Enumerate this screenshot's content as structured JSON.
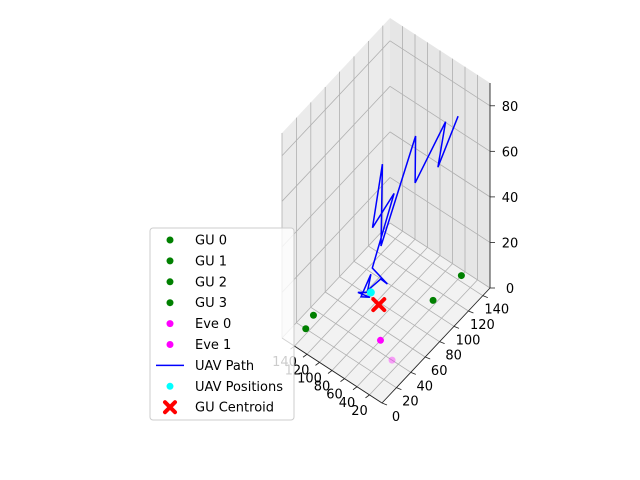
{
  "chart_data": {
    "type": "scatter3d",
    "title": "",
    "xlabel": "",
    "ylabel": "",
    "zlabel": "",
    "xlim": [
      0,
      160
    ],
    "ylim": [
      0,
      150
    ],
    "zlim": [
      0,
      90
    ],
    "x_ticks": [
      "20",
      "40",
      "60",
      "80",
      "100",
      "120",
      "140"
    ],
    "x_ticks_visible": [
      "20",
      "100",
      "120",
      "140"
    ],
    "y_ticks": [
      "0",
      "20",
      "40",
      "60",
      "80",
      "100",
      "120",
      "140"
    ],
    "z_ticks": [
      "0",
      "20",
      "40",
      "60",
      "80"
    ],
    "grid": true,
    "legend_position": "lower-left",
    "colors": {
      "gu": "#008000",
      "eve": "#ff00ff",
      "path": "#0000ff",
      "uav_positions": "#00ffff",
      "centroid": "#ff0000"
    },
    "ground_users": [
      {
        "name": "GU 0",
        "x": 150,
        "y": 35,
        "z": 0
      },
      {
        "name": "GU 1",
        "x": 145,
        "y": 20,
        "z": 0
      },
      {
        "name": "GU 2",
        "x": 45,
        "y": 110,
        "z": 0
      },
      {
        "name": "GU 3",
        "x": 40,
        "y": 145,
        "z": 0
      }
    ],
    "eavesdroppers": [
      {
        "name": "Eve 0",
        "x": 30,
        "y": 40,
        "z": 0
      },
      {
        "name": "Eve 1",
        "x": 60,
        "y": 50,
        "z": 0
      }
    ],
    "uav_path": {
      "name": "UAV Path",
      "points": [
        [
          5,
          110,
          88
        ],
        [
          20,
          95,
          68
        ],
        [
          25,
          110,
          82
        ],
        [
          45,
          85,
          60
        ],
        [
          50,
          90,
          78
        ],
        [
          88,
          75,
          28
        ],
        [
          95,
          83,
          60
        ],
        [
          105,
          78,
          32
        ],
        [
          90,
          95,
          44
        ],
        [
          125,
          95,
          5
        ],
        [
          95,
          90,
          5
        ],
        [
          100,
          85,
          8
        ],
        [
          115,
          80,
          2
        ],
        [
          110,
          80,
          10
        ],
        [
          120,
          75,
          0
        ],
        [
          100,
          70,
          5
        ],
        [
          125,
          75,
          1
        ],
        [
          110,
          80,
          2
        ]
      ]
    },
    "uav_positions": {
      "name": "UAV Positions",
      "x": 110,
      "y": 80,
      "z": 2
    },
    "gu_centroid": {
      "name": "GU Centroid",
      "x": 95,
      "y": 78,
      "z": 0
    },
    "legend": [
      "GU 0",
      "GU 1",
      "GU 2",
      "GU 3",
      "Eve 0",
      "Eve 1",
      "UAV Path",
      "UAV Positions",
      "GU Centroid"
    ]
  }
}
